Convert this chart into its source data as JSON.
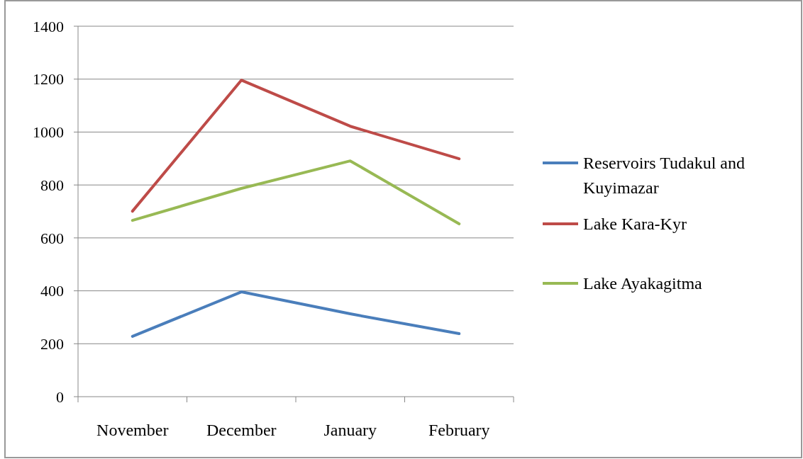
{
  "chart_data": {
    "type": "line",
    "categories": [
      "November",
      "December",
      "January",
      "February"
    ],
    "series": [
      {
        "name": "Reservoirs Tudakul and Kuyimazar",
        "color": "#4a7ebb",
        "values": [
          228,
          396,
          313,
          238
        ]
      },
      {
        "name": "Lake Kara-Kyr",
        "color": "#be4b48",
        "values": [
          701,
          1196,
          1022,
          899
        ]
      },
      {
        "name": "Lake Ayakagitma",
        "color": "#98b954",
        "values": [
          666,
          787,
          891,
          653
        ]
      }
    ],
    "ylim": [
      0,
      1400
    ],
    "yticks": [
      0,
      200,
      400,
      600,
      800,
      1000,
      1200,
      1400
    ],
    "grid": "y",
    "legend": "right",
    "marker": "none",
    "line_style": "solid"
  }
}
